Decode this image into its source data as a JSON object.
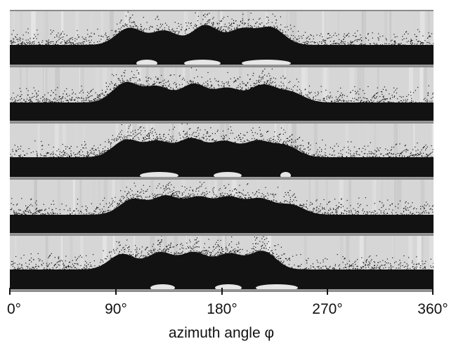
{
  "figure": {
    "panels": [
      {
        "id": "panel-1",
        "dark": "#111111"
      },
      {
        "id": "panel-2",
        "dark": "#111111"
      },
      {
        "id": "panel-3",
        "dark": "#111111"
      },
      {
        "id": "panel-4",
        "dark": "#111111"
      },
      {
        "id": "panel-5",
        "dark": "#111111"
      }
    ],
    "colors": {
      "background": "#d6d6d6",
      "liquid": "#121212",
      "separator": "#8a8a8a"
    }
  },
  "axis": {
    "ticks": [
      {
        "value": 0,
        "label": "0°"
      },
      {
        "value": 90,
        "label": "90°"
      },
      {
        "value": 180,
        "label": "180°"
      },
      {
        "value": 270,
        "label": "270°"
      },
      {
        "value": 360,
        "label": "360°"
      }
    ],
    "label": "azimuth angle φ",
    "range": [
      0,
      360
    ]
  }
}
